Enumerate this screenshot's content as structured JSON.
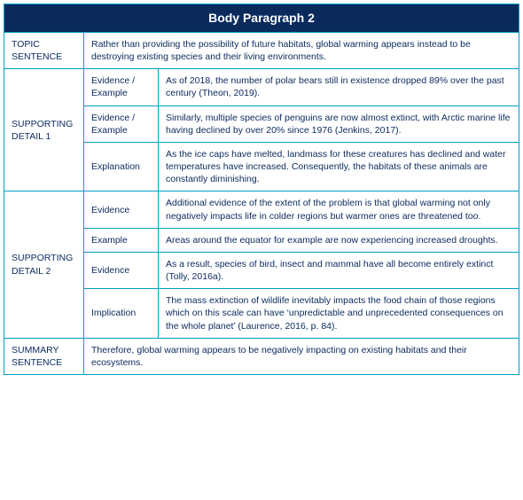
{
  "title": "Body Paragraph 2",
  "colors": {
    "header_bg": "#0a2a5c",
    "header_fg": "#ffffff",
    "border": "#00a0c4",
    "label_fg": "#0a2a5c",
    "text_fg": "#0a2a5c",
    "bg": "#ffffff"
  },
  "rows": {
    "topic": {
      "label": "TOPIC SENTENCE",
      "text": "Rather than providing the possibility of future habitats, global warming appears instead to be destroying existing species and their living environments."
    },
    "support1": {
      "label": "SUPPORTING DETAIL 1",
      "items": [
        {
          "sub": "Evidence / Example",
          "text": "As of 2018, the number of polar bears still in existence dropped 89% over the past century (Theon, 2019)."
        },
        {
          "sub": "Evidence / Example",
          "text": "Similarly, multiple species of penguins are now almost extinct, with Arctic marine life having declined by over 20% since 1976 (Jenkins, 2017)."
        },
        {
          "sub": "Explanation",
          "text": "As the ice caps have melted, landmass for these creatures has declined and water temperatures have increased. Consequently, the habitats of these animals are constantly diminishing."
        }
      ]
    },
    "support2": {
      "label": "SUPPORTING DETAIL 2",
      "items": [
        {
          "sub": "Evidence",
          "text": "Additional evidence of the extent of the problem is that global warming not only negatively impacts life in colder regions but warmer ones are threatened too."
        },
        {
          "sub": "Example",
          "text": "Areas around the equator for example are now experiencing increased droughts."
        },
        {
          "sub": "Evidence",
          "text": "As a result, species of bird, insect and mammal have all become entirely extinct (Tolly, 2016a)."
        },
        {
          "sub": "Implication",
          "text": "The mass extinction of wildlife inevitably impacts the food chain of those regions which on this scale can have ‘unpredictable and unprecedented consequences on the whole planet’ (Laurence, 2016, p. 84)."
        }
      ]
    },
    "summary": {
      "label": "SUMMARY SENTENCE",
      "text": "Therefore, global warming appears to be negatively impacting on existing habitats and their ecosystems."
    }
  }
}
